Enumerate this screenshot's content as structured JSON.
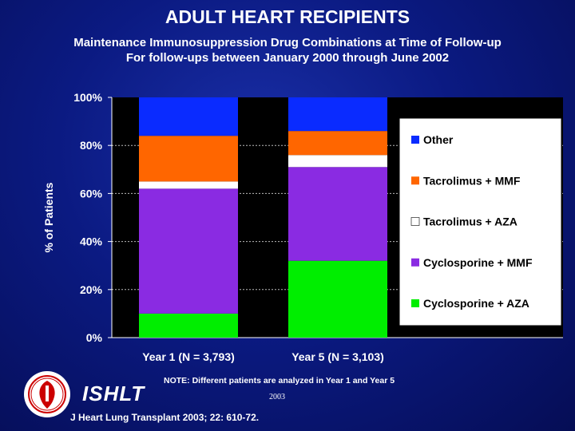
{
  "title": "ADULT HEART RECIPIENTS",
  "subtitle_line1": "Maintenance Immunosuppression Drug Combinations at Time of Follow-up",
  "subtitle_line2": "For follow-ups between January 2000 through June 2002",
  "note": "NOTE: Different patients are analyzed in Year 1 and Year 5",
  "note_year": "2003",
  "brand": "ISHLT",
  "citation": "J Heart Lung Transplant 2003; 22: 610-72.",
  "colors": {
    "Cyclosporine + AZA": "#00ee00",
    "Cyclosporine + MMF": "#8a2be2",
    "Tacrolimus + AZA": "#ffffff",
    "Tacrolimus + MMF": "#ff6600",
    "Other": "#0a2bff",
    "plot_background": "#000000",
    "legend_background": "#ffffff"
  },
  "chart_data": {
    "type": "bar",
    "stacked": true,
    "categories": [
      "Year 1 (N = 3,793)",
      "Year 5 (N = 3,103)"
    ],
    "series": [
      {
        "name": "Cyclosporine + AZA",
        "values": [
          10,
          32
        ]
      },
      {
        "name": "Cyclosporine + MMF",
        "values": [
          52,
          39
        ]
      },
      {
        "name": "Tacrolimus + AZA",
        "values": [
          3,
          5
        ]
      },
      {
        "name": "Tacrolimus + MMF",
        "values": [
          19,
          10
        ]
      },
      {
        "name": "Other",
        "values": [
          16,
          14
        ]
      }
    ],
    "ylabel": "% of Patients",
    "xlabel": "",
    "ylim": [
      0,
      100
    ],
    "yticks": [
      "0%",
      "20%",
      "40%",
      "60%",
      "80%",
      "100%"
    ],
    "grid": true,
    "legend_position": "right"
  }
}
